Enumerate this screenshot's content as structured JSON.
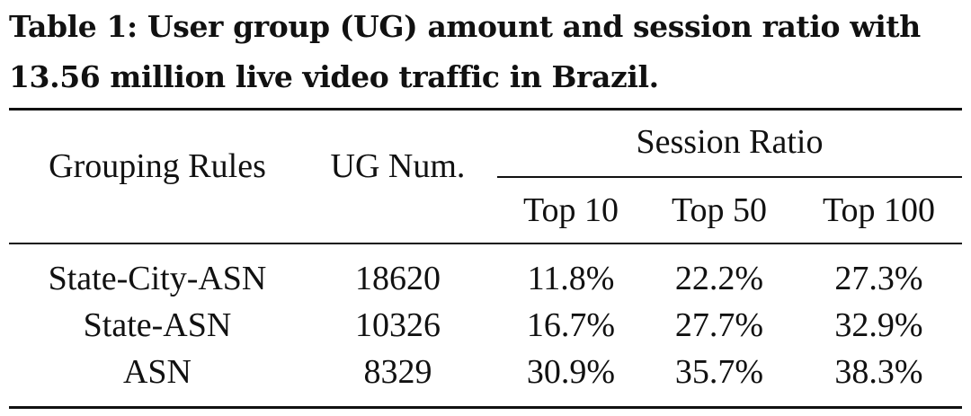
{
  "caption": {
    "line1": "Table 1: User group (UG) amount and session ratio with",
    "line2": "13.56 million live video traffic in Brazil."
  },
  "table": {
    "headers": {
      "grouping_rules": "Grouping Rules",
      "ug_num": "UG Num.",
      "session_ratio": "Session Ratio",
      "top10": "Top 10",
      "top50": "Top 50",
      "top100": "Top 100"
    },
    "rows": [
      {
        "rule": "State-City-ASN",
        "ug_num": "18620",
        "top10": "11.8%",
        "top50": "22.2%",
        "top100": "27.3%"
      },
      {
        "rule": "State-ASN",
        "ug_num": "10326",
        "top10": "16.7%",
        "top50": "27.7%",
        "top100": "32.9%"
      },
      {
        "rule": "ASN",
        "ug_num": "8329",
        "top10": "30.9%",
        "top50": "35.7%",
        "top100": "38.3%"
      }
    ]
  }
}
